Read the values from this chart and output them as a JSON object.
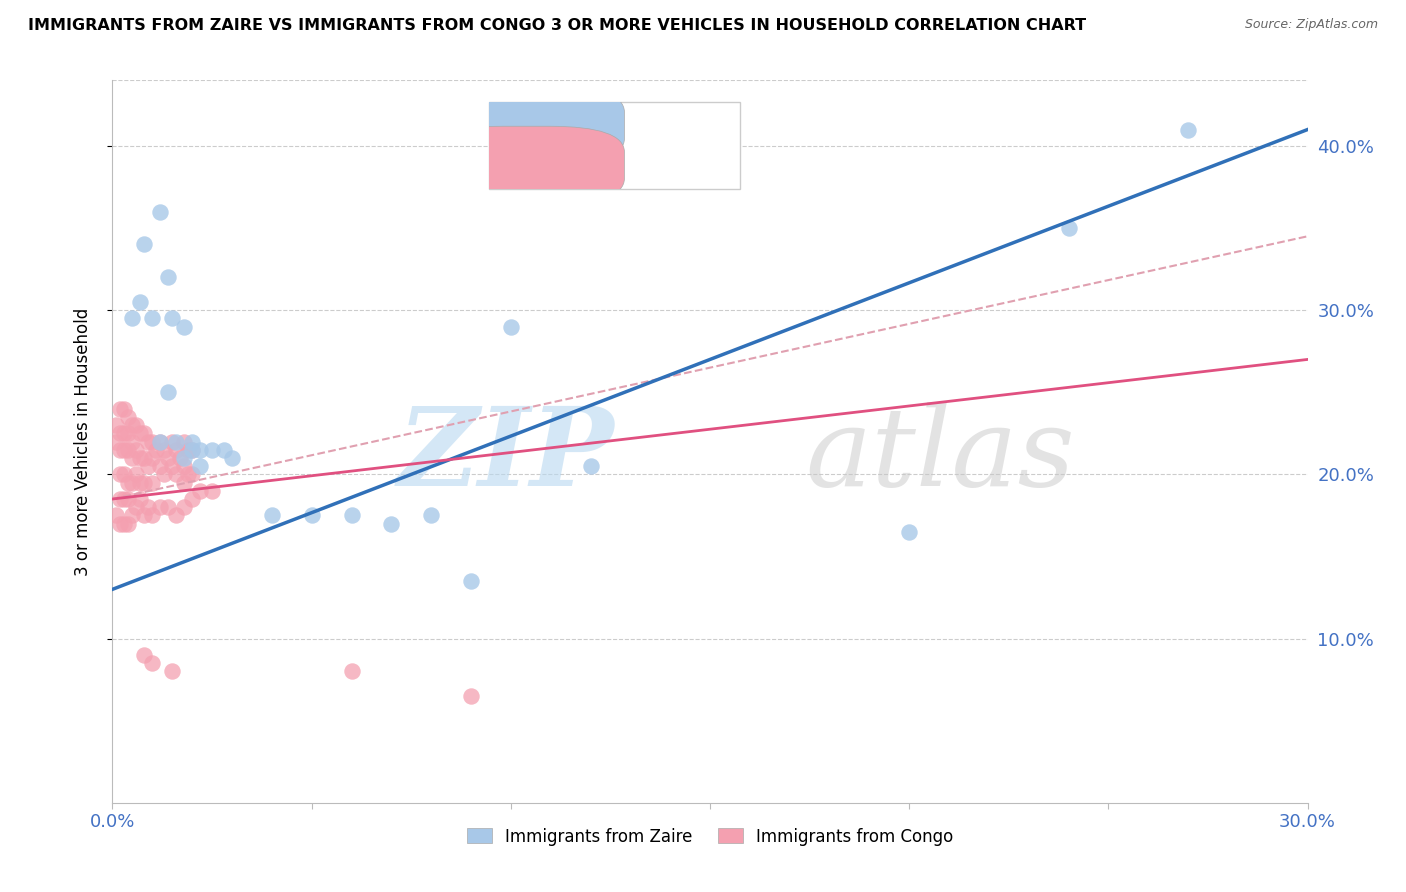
{
  "title": "IMMIGRANTS FROM ZAIRE VS IMMIGRANTS FROM CONGO 3 OR MORE VEHICLES IN HOUSEHOLD CORRELATION CHART",
  "source": "Source: ZipAtlas.com",
  "ylabel": "3 or more Vehicles in Household",
  "xlim": [
    0.0,
    0.3
  ],
  "ylim": [
    0.0,
    0.44
  ],
  "color_zaire": "#a8c8e8",
  "color_congo": "#f4a0b0",
  "color_line_zaire": "#3070b8",
  "color_line_congo": "#e05080",
  "color_dashed": "#e0a0b0",
  "watermark_zip": "ZIP",
  "watermark_atlas": "atlas",
  "zaire_line_x0": 0.0,
  "zaire_line_y0": 0.13,
  "zaire_line_x1": 0.3,
  "zaire_line_y1": 0.41,
  "congo_line_x0": 0.0,
  "congo_line_y0": 0.185,
  "congo_line_x1": 0.3,
  "congo_line_y1": 0.27,
  "dash_line_x0": 0.0,
  "dash_line_y0": 0.185,
  "dash_line_x1": 0.3,
  "dash_line_y1": 0.345,
  "zaire_x": [
    0.008,
    0.012,
    0.014,
    0.007,
    0.005,
    0.01,
    0.015,
    0.018,
    0.02,
    0.022,
    0.025,
    0.028,
    0.03,
    0.04,
    0.05,
    0.06,
    0.07,
    0.08,
    0.09,
    0.1,
    0.012,
    0.016,
    0.018,
    0.014,
    0.02,
    0.022,
    0.12,
    0.2,
    0.24,
    0.27
  ],
  "zaire_y": [
    0.34,
    0.36,
    0.32,
    0.305,
    0.295,
    0.295,
    0.295,
    0.29,
    0.22,
    0.215,
    0.215,
    0.215,
    0.21,
    0.175,
    0.175,
    0.175,
    0.17,
    0.175,
    0.135,
    0.29,
    0.22,
    0.22,
    0.21,
    0.25,
    0.215,
    0.205,
    0.205,
    0.165,
    0.35,
    0.41
  ],
  "congo_x": [
    0.001,
    0.001,
    0.002,
    0.002,
    0.002,
    0.002,
    0.003,
    0.003,
    0.003,
    0.003,
    0.004,
    0.004,
    0.004,
    0.004,
    0.005,
    0.005,
    0.005,
    0.005,
    0.006,
    0.006,
    0.006,
    0.007,
    0.007,
    0.007,
    0.008,
    0.008,
    0.008,
    0.009,
    0.009,
    0.01,
    0.01,
    0.01,
    0.011,
    0.012,
    0.012,
    0.013,
    0.013,
    0.014,
    0.015,
    0.015,
    0.016,
    0.016,
    0.017,
    0.018,
    0.018,
    0.018,
    0.019,
    0.019,
    0.02,
    0.02,
    0.001,
    0.002,
    0.002,
    0.003,
    0.003,
    0.004,
    0.004,
    0.005,
    0.006,
    0.007,
    0.008,
    0.009,
    0.01,
    0.012,
    0.014,
    0.016,
    0.018,
    0.02,
    0.022,
    0.025,
    0.008,
    0.01,
    0.015,
    0.06,
    0.09
  ],
  "congo_y": [
    0.23,
    0.22,
    0.24,
    0.225,
    0.215,
    0.2,
    0.24,
    0.225,
    0.215,
    0.2,
    0.235,
    0.225,
    0.215,
    0.195,
    0.23,
    0.22,
    0.21,
    0.195,
    0.23,
    0.215,
    0.2,
    0.225,
    0.21,
    0.195,
    0.225,
    0.21,
    0.195,
    0.22,
    0.205,
    0.22,
    0.21,
    0.195,
    0.215,
    0.22,
    0.205,
    0.215,
    0.2,
    0.21,
    0.22,
    0.205,
    0.215,
    0.2,
    0.21,
    0.22,
    0.205,
    0.195,
    0.215,
    0.2,
    0.215,
    0.2,
    0.175,
    0.185,
    0.17,
    0.185,
    0.17,
    0.185,
    0.17,
    0.175,
    0.18,
    0.185,
    0.175,
    0.18,
    0.175,
    0.18,
    0.18,
    0.175,
    0.18,
    0.185,
    0.19,
    0.19,
    0.09,
    0.085,
    0.08,
    0.08,
    0.065
  ]
}
